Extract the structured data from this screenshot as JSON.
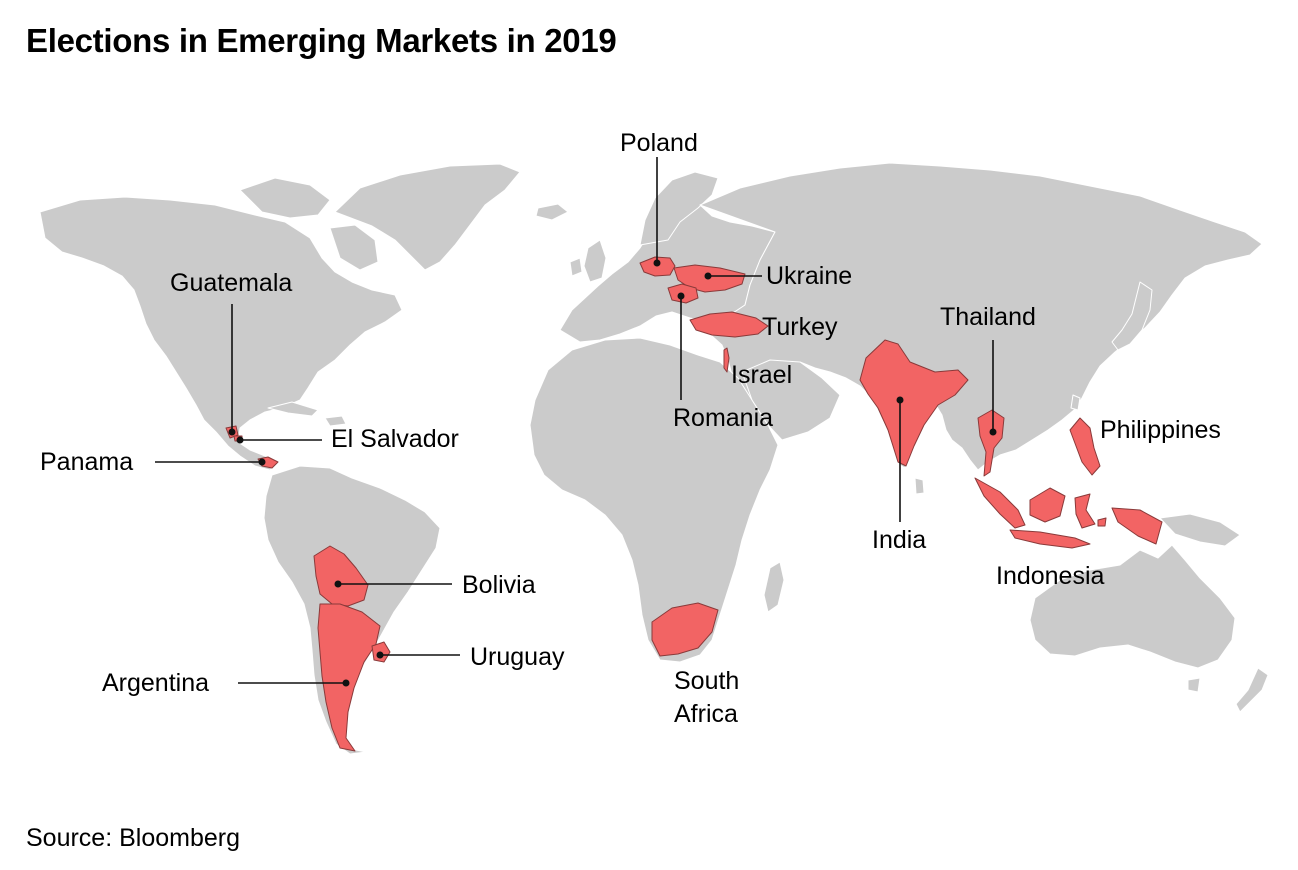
{
  "title": "Elections in Emerging Markets in 2019",
  "source": "Source: Bloomberg",
  "colors": {
    "highlight": "#f26464",
    "land": "#cbcbcb",
    "background": "#ffffff",
    "leader": "#111111"
  },
  "countries": [
    {
      "id": "poland",
      "label": "Poland"
    },
    {
      "id": "ukraine",
      "label": "Ukraine"
    },
    {
      "id": "turkey",
      "label": "Turkey"
    },
    {
      "id": "israel",
      "label": "Israel"
    },
    {
      "id": "romania",
      "label": "Romania"
    },
    {
      "id": "guatemala",
      "label": "Guatemala"
    },
    {
      "id": "el-salvador",
      "label": "El Salvador"
    },
    {
      "id": "panama",
      "label": "Panama"
    },
    {
      "id": "bolivia",
      "label": "Bolivia"
    },
    {
      "id": "uruguay",
      "label": "Uruguay"
    },
    {
      "id": "argentina",
      "label": "Argentina"
    },
    {
      "id": "south-africa",
      "label_lines": [
        "South",
        "Africa"
      ]
    },
    {
      "id": "india",
      "label": "India"
    },
    {
      "id": "thailand",
      "label": "Thailand"
    },
    {
      "id": "philippines",
      "label": "Philippines"
    },
    {
      "id": "indonesia",
      "label": "Indonesia"
    }
  ]
}
